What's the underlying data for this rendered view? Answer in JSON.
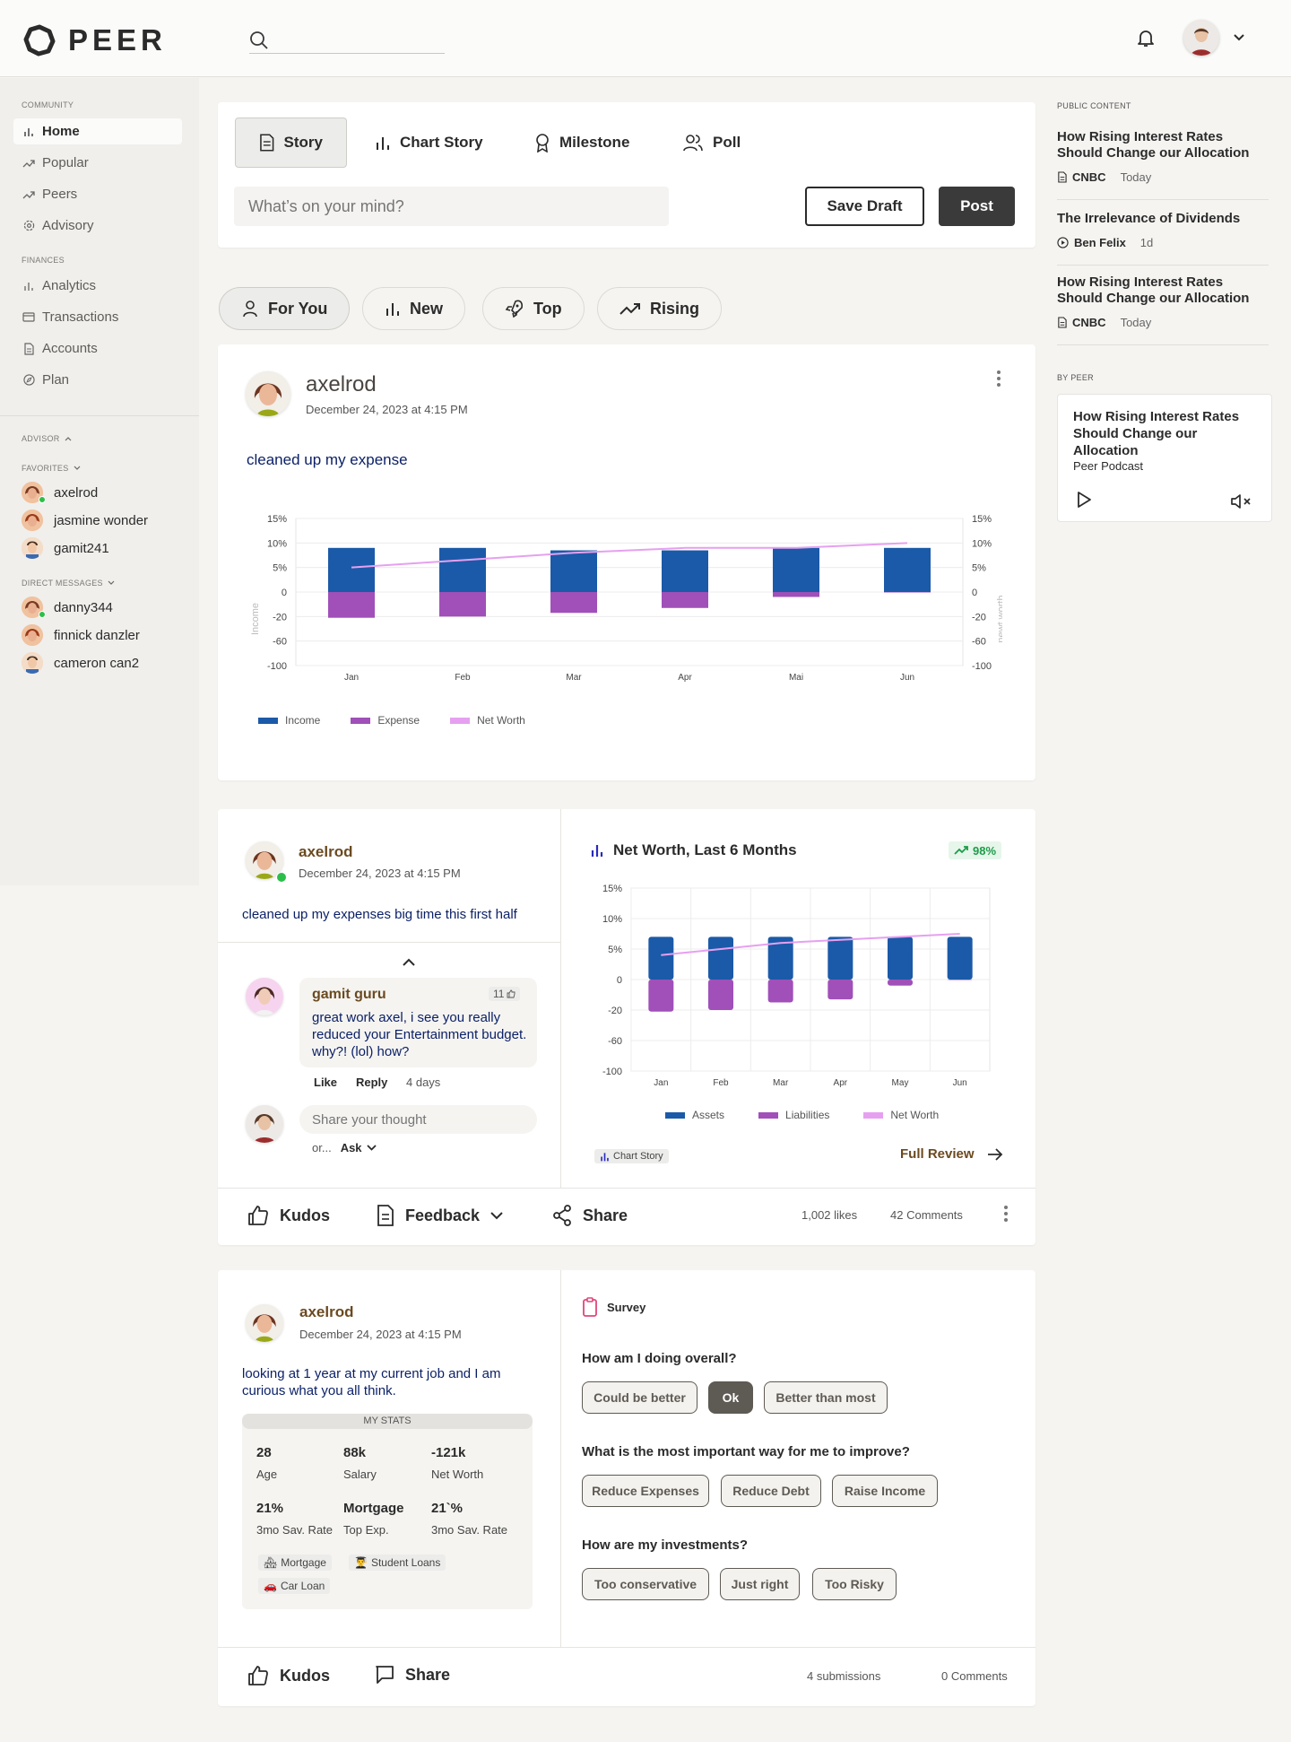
{
  "app": {
    "name": "PEER"
  },
  "header": {
    "search_placeholder": ""
  },
  "sidebar": {
    "community_label": "COMMUNITY",
    "community": [
      {
        "label": "Home",
        "icon": "bar-chart-icon",
        "active": true
      },
      {
        "label": "Popular",
        "icon": "trend-icon"
      },
      {
        "label": "Peers",
        "icon": "trend-icon"
      },
      {
        "label": "Advisory",
        "icon": "gear-icon"
      }
    ],
    "finances_label": "FINANCES",
    "finances": [
      {
        "label": "Analytics",
        "icon": "bar-chart-icon"
      },
      {
        "label": "Transactions",
        "icon": "card-icon"
      },
      {
        "label": "Accounts",
        "icon": "document-icon"
      },
      {
        "label": "Plan",
        "icon": "compass-icon"
      }
    ],
    "advisor_label": "ADVISOR",
    "favorites_label": "FAVORITES",
    "favorites": [
      {
        "name": "axelrod",
        "online": true
      },
      {
        "name": "jasmine wonder",
        "online": false
      },
      {
        "name": "gamit241",
        "online": false
      }
    ],
    "dm_label": "DIRECT MESSAGES",
    "dms": [
      {
        "name": "danny344",
        "online": true
      },
      {
        "name": "finnick danzler",
        "online": false
      },
      {
        "name": "cameron can2",
        "online": false
      }
    ]
  },
  "composer": {
    "tabs": [
      "Story",
      "Chart Story",
      "Milestone",
      "Poll"
    ],
    "placeholder": "What’s on your mind?",
    "save_draft": "Save Draft",
    "post": "Post"
  },
  "feed_tabs": [
    "For You",
    "New",
    "Top",
    "Rising"
  ],
  "post1": {
    "user": "axelrod",
    "date": "December 24, 2023 at 4:15 PM",
    "text": "cleaned up my expense",
    "left_axis_label": "Income",
    "right_axis_label": "newt worth",
    "legend": [
      "Income",
      "Expense",
      "Net Worth"
    ]
  },
  "post2": {
    "user": "axelrod",
    "date": "December 24, 2023 at 4:15 PM",
    "text": "cleaned up my expenses big time this first half",
    "comment": {
      "user": "gamit guru",
      "likes": "11",
      "text": "great work axel, i see you really reduced your Entertainment budget. why?! (lol) how?",
      "like": "Like",
      "reply": "Reply",
      "time": "4 days"
    },
    "reply_placeholder": "Share your thought",
    "or_text": "or...",
    "ask": "Ask",
    "chart_title": "Net Worth, Last 6 Months",
    "badge": "98%",
    "legend": [
      "Assets",
      "Liabilities",
      "Net Worth"
    ],
    "chart_story_tag": "Chart Story",
    "full_review": "Full Review",
    "kudos": "Kudos",
    "feedback": "Feedback",
    "share": "Share",
    "likes": "1,002 likes",
    "comments": "42 Comments"
  },
  "post3": {
    "user": "axelrod",
    "date": "December 24, 2023 at 4:15 PM",
    "text": "looking at 1 year at my current job and I am curious what you all think.",
    "stats_title": "MY STATS",
    "stats": [
      {
        "value": "28",
        "label": "Age"
      },
      {
        "value": "88k",
        "label": "Salary"
      },
      {
        "value": "-121k",
        "label": "Net Worth"
      },
      {
        "value": "21%",
        "label": "3mo Sav. Rate"
      },
      {
        "value": "Mortgage",
        "label": "Top Exp."
      },
      {
        "value": "21`%",
        "label": "3mo Sav. Rate"
      }
    ],
    "tags": [
      "Mortgage",
      "Student Loans",
      "Car Loan"
    ],
    "survey_label": "Survey",
    "q1": "How am I doing overall?",
    "q1_options": [
      "Could be better",
      "Ok",
      "Better than most"
    ],
    "q2": "What is the most important way for me to improve?",
    "q2_options": [
      "Reduce Expenses",
      "Reduce Debt",
      "Raise Income"
    ],
    "q3": "How are my investments?",
    "q3_options": [
      "Too conservative",
      "Just right",
      "Too Risky"
    ],
    "kudos": "Kudos",
    "share": "Share",
    "submissions": "4 submissions",
    "comments": "0 Comments"
  },
  "right_sidebar": {
    "public_label": "PUBLIC CONTENT",
    "items": [
      {
        "title": "How Rising Interest Rates Should Change our Allocation",
        "source": "CNBC",
        "time": "Today",
        "icon": "document-icon"
      },
      {
        "title": "The Irrelevance of Dividends",
        "source": "Ben Felix",
        "time": "1d",
        "icon": "play-circle-icon"
      },
      {
        "title": "How Rising Interest Rates Should Change our Allocation",
        "source": "CNBC",
        "time": "Today",
        "icon": "document-icon"
      }
    ],
    "by_peer_label": "BY PEER",
    "podcast_title": "How Rising Interest Rates Should Change our Allocation",
    "podcast_source": "Peer Podcast"
  },
  "colors": {
    "income": "#1b5aa8",
    "expense": "#a050b8",
    "networth": "#e6a0f0",
    "accent_green": "#1e9c4a"
  },
  "chart_data": [
    {
      "type": "bar",
      "categories": [
        "Jan",
        "Feb",
        "Mar",
        "Apr",
        "Mai",
        "Jun"
      ],
      "y_ticks": [
        "15%",
        "10%",
        "5%",
        "0",
        "-20",
        "-60",
        "-100"
      ],
      "right_ticks": [
        "15%",
        "10%",
        "5%",
        "0",
        "-20",
        "-60",
        "-100"
      ],
      "series": [
        {
          "name": "Income",
          "values": [
            9,
            9,
            8.5,
            8.5,
            9,
            9
          ]
        },
        {
          "name": "Expense",
          "values": [
            -22,
            -20,
            -17,
            -13,
            -4,
            0
          ]
        },
        {
          "name": "Net Worth",
          "type": "line",
          "values": [
            5,
            6.5,
            8,
            9,
            9,
            10
          ]
        }
      ]
    },
    {
      "type": "bar",
      "title": "Net Worth, Last 6 Months",
      "categories": [
        "Jan",
        "Feb",
        "Mar",
        "Apr",
        "May",
        "Jun"
      ],
      "y_ticks": [
        "15%",
        "10%",
        "5%",
        "0",
        "-20",
        "-60",
        "-100"
      ],
      "series": [
        {
          "name": "Assets",
          "values": [
            7,
            7,
            7,
            7,
            7,
            7
          ]
        },
        {
          "name": "Liabilities",
          "values": [
            -22,
            -20,
            -15,
            -13,
            -4,
            0
          ]
        },
        {
          "name": "Net Worth",
          "type": "line",
          "values": [
            4,
            5,
            6,
            6.5,
            7,
            7.5
          ]
        }
      ]
    }
  ]
}
